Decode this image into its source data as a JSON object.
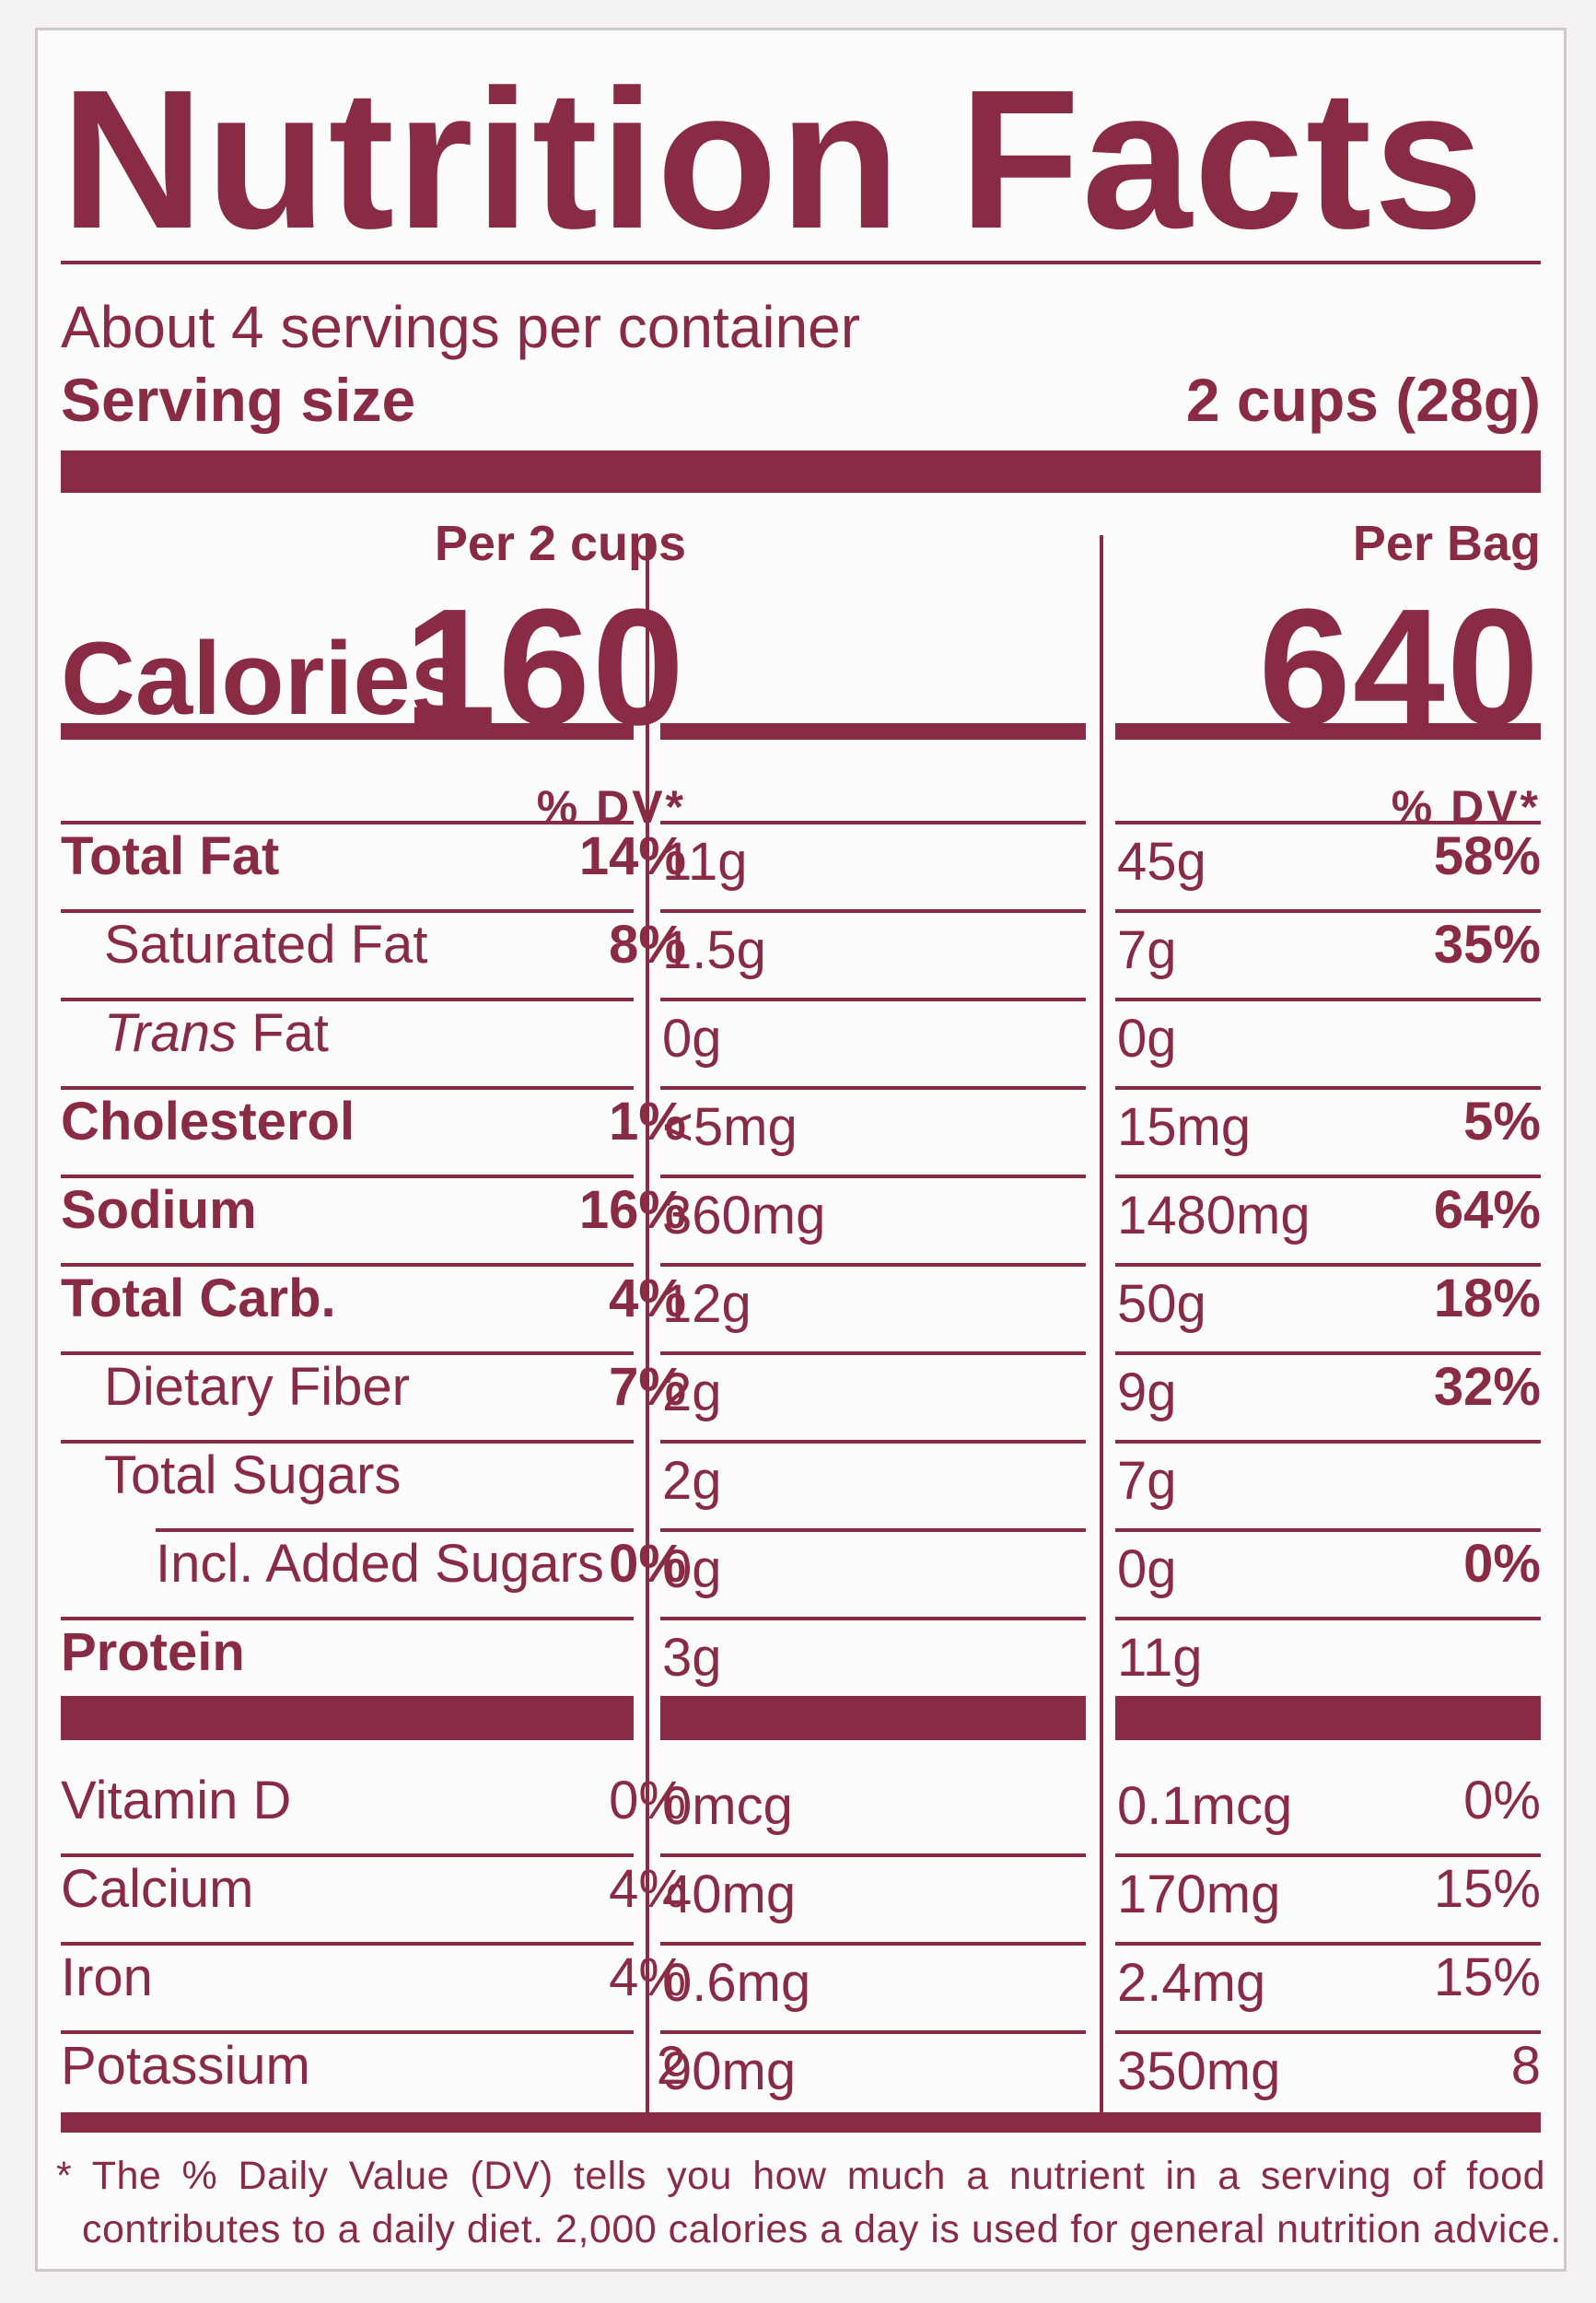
{
  "label": {
    "title": "Nutrition Facts",
    "servings_per_container": "About 4 servings per container",
    "serving_size_label": "Serving size",
    "serving_size_value": "2 cups (28g)",
    "columns": [
      {
        "header": "Per 2 cups",
        "calories": "160",
        "dv_header": "% DV*"
      },
      {
        "header": "Per Bag",
        "calories": "640",
        "dv_header": "% DV*"
      }
    ],
    "calories_label": "Calories",
    "nutrients": [
      {
        "name": "Total Fat",
        "bold": true,
        "indent": 0,
        "c1_amount": "11g",
        "c1_dv": "14%",
        "c2_amount": "45g",
        "c2_dv": "58%"
      },
      {
        "name": "Saturated Fat",
        "bold": false,
        "indent": 1,
        "c1_amount": "1.5g",
        "c1_dv": "8%",
        "c2_amount": "7g",
        "c2_dv": "35%"
      },
      {
        "name_italic": "Trans",
        "name": " Fat",
        "bold": false,
        "indent": 1,
        "c1_amount": "0g",
        "c1_dv": "",
        "c2_amount": "0g",
        "c2_dv": ""
      },
      {
        "name": "Cholesterol",
        "bold": true,
        "indent": 0,
        "c1_amount": "<5mg",
        "c1_dv": "1%",
        "c2_amount": "15mg",
        "c2_dv": "5%"
      },
      {
        "name": "Sodium",
        "bold": true,
        "indent": 0,
        "c1_amount": "360mg",
        "c1_dv": "16%",
        "c2_amount": "1480mg",
        "c2_dv": "64%"
      },
      {
        "name": "Total Carb.",
        "bold": true,
        "indent": 0,
        "c1_amount": "12g",
        "c1_dv": "4%",
        "c2_amount": "50g",
        "c2_dv": "18%"
      },
      {
        "name": "Dietary Fiber",
        "bold": false,
        "indent": 1,
        "c1_amount": "2g",
        "c1_dv": "7%",
        "c2_amount": "9g",
        "c2_dv": "32%"
      },
      {
        "name": "Total Sugars",
        "bold": false,
        "indent": 1,
        "c1_amount": "2g",
        "c1_dv": "",
        "c2_amount": "7g",
        "c2_dv": ""
      },
      {
        "name": "Incl. Added Sugars",
        "bold": false,
        "indent": 2,
        "c1_amount": "0g",
        "c1_dv": "0%",
        "c2_amount": "0g",
        "c2_dv": "0%"
      },
      {
        "name": "Protein",
        "bold": true,
        "indent": 0,
        "c1_amount": "3g",
        "c1_dv": "",
        "c2_amount": "11g",
        "c2_dv": ""
      }
    ],
    "vitamins": [
      {
        "name": "Vitamin D",
        "c1_amount": "0mcg",
        "c1_dv": "0%",
        "c2_amount": "0.1mcg",
        "c2_dv": "0%"
      },
      {
        "name": "Calcium",
        "c1_amount": "40mg",
        "c1_dv": "4%",
        "c2_amount": "170mg",
        "c2_dv": "15%"
      },
      {
        "name": "Iron",
        "c1_amount": "0.6mg",
        "c1_dv": "4%",
        "c2_amount": "2.4mg",
        "c2_dv": "15%"
      },
      {
        "name": "Potassium",
        "c1_amount": "90mg",
        "c1_dv": "2",
        "c2_amount": "350mg",
        "c2_dv": "8"
      }
    ],
    "footnote_line1": "* The % Daily Value (DV) tells you how much a nutrient in a serving of food",
    "footnote_line2": "contributes to a daily diet. 2,000 calories a day is used for general nutrition advice.",
    "colors": {
      "ink": "#8a2b45",
      "background": "#fcfcfd"
    }
  }
}
